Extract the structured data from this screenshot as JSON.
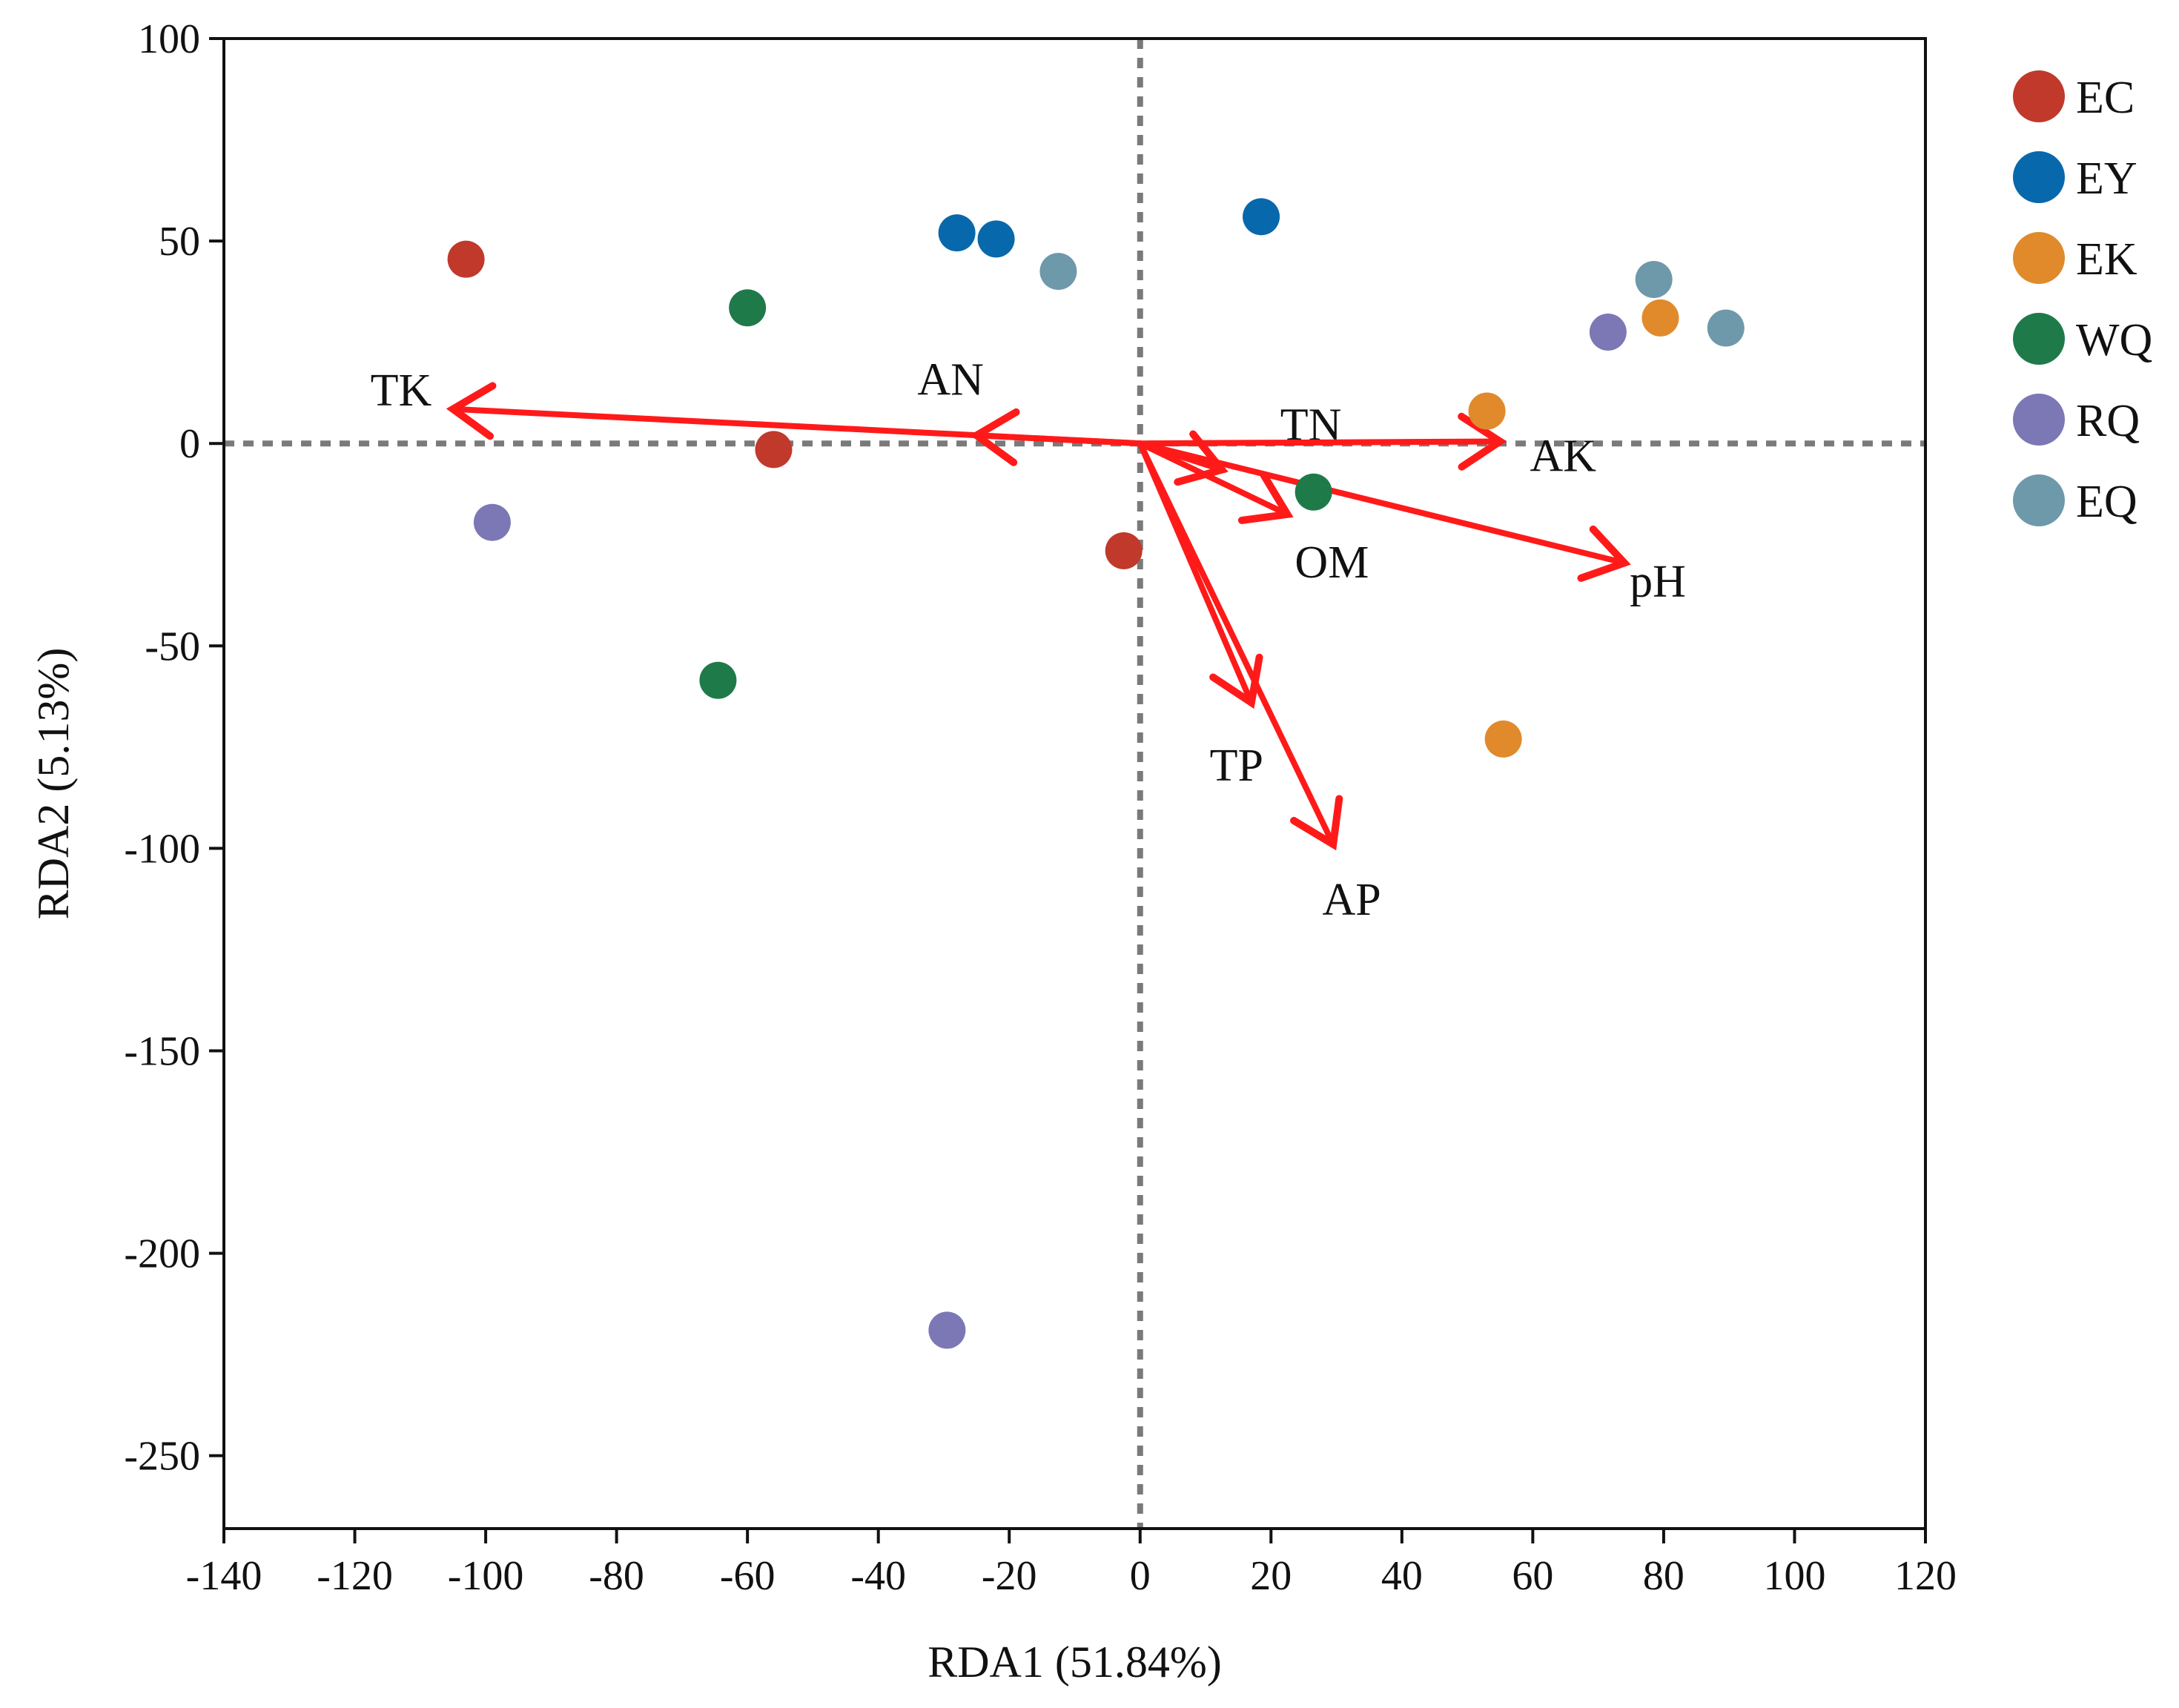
{
  "chart_data": {
    "type": "scatter",
    "subtype": "rda-biplot",
    "xlabel": "RDA1 (51.84%)",
    "ylabel": "RDA2 (5.13%)",
    "xlim": [
      -140,
      120
    ],
    "ylim": [
      -268,
      100
    ],
    "xticks": [
      -140,
      -120,
      -100,
      -80,
      -60,
      -40,
      -20,
      0,
      20,
      40,
      60,
      80,
      100,
      120
    ],
    "yticks": [
      -250,
      -200,
      -150,
      -100,
      -50,
      0,
      50,
      100
    ],
    "reference_lines": {
      "x": 0,
      "y": 0,
      "style": "dotted"
    },
    "legend_position": "top-right, outside plot",
    "series": [
      {
        "name": "EC",
        "color": "#c0392b",
        "points": [
          [
            -103,
            45.5
          ],
          [
            -56,
            -1.5
          ],
          [
            -2.5,
            -26.5
          ]
        ]
      },
      {
        "name": "EY",
        "color": "#0868ac",
        "points": [
          [
            -28,
            52
          ],
          [
            -22,
            50.5
          ],
          [
            18.5,
            56
          ]
        ]
      },
      {
        "name": "EK",
        "color": "#e08a2c",
        "points": [
          [
            53,
            8
          ],
          [
            79.5,
            31
          ],
          [
            55.5,
            -73
          ]
        ]
      },
      {
        "name": "WQ",
        "color": "#1f7a4a",
        "points": [
          [
            -60,
            33.5
          ],
          [
            -64.5,
            -58.5
          ],
          [
            26.5,
            -12
          ]
        ]
      },
      {
        "name": "RQ",
        "color": "#7b78b5",
        "points": [
          [
            -99,
            -19.5
          ],
          [
            71.5,
            27.5
          ],
          [
            -29.5,
            -219
          ]
        ]
      },
      {
        "name": "EQ",
        "color": "#6e99ab",
        "points": [
          [
            -12.5,
            42.5
          ],
          [
            78.5,
            40.5
          ],
          [
            89.5,
            28.5
          ]
        ]
      }
    ],
    "arrows": {
      "color": "#ff1a1a",
      "vectors": [
        {
          "name": "TK",
          "x": -105,
          "y": 8.5
        },
        {
          "name": "AN",
          "x": -25,
          "y": 2
        },
        {
          "name": "TN",
          "x": 12.5,
          "y": -6.5
        },
        {
          "name": "AK",
          "x": 55,
          "y": 0.5
        },
        {
          "name": "OM",
          "x": 22.5,
          "y": -17.5
        },
        {
          "name": "pH",
          "x": 74,
          "y": -29.5
        },
        {
          "name": "TP",
          "x": 17,
          "y": -64
        },
        {
          "name": "AP",
          "x": 29.5,
          "y": -99
        }
      ]
    }
  }
}
